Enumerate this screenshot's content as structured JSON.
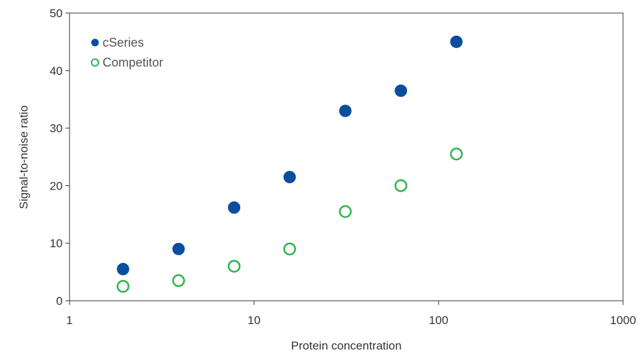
{
  "chart_data": {
    "type": "scatter",
    "title": "",
    "xlabel": "Protein concentration",
    "ylabel": "Signal-to-noise ratio",
    "x_scale": "log",
    "xlim": [
      1,
      1000
    ],
    "ylim": [
      0,
      50
    ],
    "x_ticks": [
      1,
      10,
      100,
      1000
    ],
    "x_tick_labels": [
      "1",
      "10",
      "100",
      "1000"
    ],
    "y_ticks": [
      0,
      10,
      20,
      30,
      40,
      50
    ],
    "y_tick_labels": [
      "0",
      "10",
      "20",
      "30",
      "40",
      "50"
    ],
    "grid": false,
    "legend_position": "top-left",
    "series": [
      {
        "name": "cSeries",
        "marker": "filled-circle",
        "color": "#0b4f9c",
        "x": [
          1.95,
          3.9,
          7.8,
          15.6,
          31.25,
          62.5,
          125
        ],
        "y": [
          5.5,
          9,
          16.2,
          21.5,
          33,
          36.5,
          45
        ]
      },
      {
        "name": "Competitor",
        "marker": "open-circle",
        "color": "#2db34a",
        "x": [
          1.95,
          3.9,
          7.8,
          15.6,
          31.25,
          62.5,
          125
        ],
        "y": [
          2.5,
          3.5,
          6,
          9,
          15.5,
          20,
          25.5
        ]
      }
    ]
  }
}
